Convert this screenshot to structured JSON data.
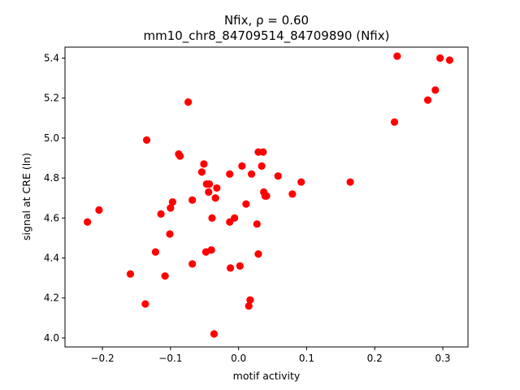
{
  "chart_data": {
    "type": "scatter",
    "title_line1": "Nfix, ρ = 0.60",
    "title_line2": "mm10_chr8_84709514_84709890 (Nfix)",
    "xlabel": "motif activity",
    "ylabel": "signal at CRE (ln)",
    "xlim": [
      -0.255,
      0.337
    ],
    "ylim": [
      3.955,
      5.455
    ],
    "xticks": [
      -0.2,
      -0.1,
      0.0,
      0.1,
      0.2,
      0.3
    ],
    "xtick_labels": [
      "−0.2",
      "−0.1",
      "0.0",
      "0.1",
      "0.2",
      "0.3"
    ],
    "yticks": [
      4.0,
      4.2,
      4.4,
      4.6,
      4.8,
      5.0,
      5.2,
      5.4
    ],
    "ytick_labels": [
      "4.0",
      "4.2",
      "4.4",
      "4.6",
      "4.8",
      "5.0",
      "5.2",
      "5.4"
    ],
    "marker_color": "#ff0000",
    "grid": false,
    "points": [
      {
        "x": -0.222,
        "y": 4.58
      },
      {
        "x": -0.205,
        "y": 4.64
      },
      {
        "x": -0.159,
        "y": 4.32
      },
      {
        "x": -0.137,
        "y": 4.17
      },
      {
        "x": -0.135,
        "y": 4.99
      },
      {
        "x": -0.122,
        "y": 4.43
      },
      {
        "x": -0.114,
        "y": 4.62
      },
      {
        "x": -0.108,
        "y": 4.31
      },
      {
        "x": -0.101,
        "y": 4.52
      },
      {
        "x": -0.1,
        "y": 4.65
      },
      {
        "x": -0.097,
        "y": 4.68
      },
      {
        "x": -0.088,
        "y": 4.92
      },
      {
        "x": -0.086,
        "y": 4.91
      },
      {
        "x": -0.074,
        "y": 5.18
      },
      {
        "x": -0.068,
        "y": 4.69
      },
      {
        "x": -0.068,
        "y": 4.37
      },
      {
        "x": -0.054,
        "y": 4.83
      },
      {
        "x": -0.051,
        "y": 4.87
      },
      {
        "x": -0.048,
        "y": 4.43
      },
      {
        "x": -0.047,
        "y": 4.77
      },
      {
        "x": -0.044,
        "y": 4.73
      },
      {
        "x": -0.043,
        "y": 4.77
      },
      {
        "x": -0.04,
        "y": 4.44
      },
      {
        "x": -0.039,
        "y": 4.6
      },
      {
        "x": -0.036,
        "y": 4.02
      },
      {
        "x": -0.034,
        "y": 4.7
      },
      {
        "x": -0.032,
        "y": 4.75
      },
      {
        "x": -0.013,
        "y": 4.82
      },
      {
        "x": -0.013,
        "y": 4.58
      },
      {
        "x": -0.012,
        "y": 4.35
      },
      {
        "x": -0.006,
        "y": 4.6
      },
      {
        "x": 0.002,
        "y": 4.36
      },
      {
        "x": 0.005,
        "y": 4.86
      },
      {
        "x": 0.011,
        "y": 4.67
      },
      {
        "x": 0.015,
        "y": 4.16
      },
      {
        "x": 0.017,
        "y": 4.19
      },
      {
        "x": 0.019,
        "y": 4.82
      },
      {
        "x": 0.027,
        "y": 4.57
      },
      {
        "x": 0.029,
        "y": 4.42
      },
      {
        "x": 0.029,
        "y": 4.93
      },
      {
        "x": 0.034,
        "y": 4.86
      },
      {
        "x": 0.036,
        "y": 4.93
      },
      {
        "x": 0.037,
        "y": 4.73
      },
      {
        "x": 0.039,
        "y": 4.71
      },
      {
        "x": 0.041,
        "y": 4.71
      },
      {
        "x": 0.058,
        "y": 4.81
      },
      {
        "x": 0.079,
        "y": 4.72
      },
      {
        "x": 0.092,
        "y": 4.78
      },
      {
        "x": 0.164,
        "y": 4.78
      },
      {
        "x": 0.229,
        "y": 5.08
      },
      {
        "x": 0.233,
        "y": 5.41
      },
      {
        "x": 0.278,
        "y": 5.19
      },
      {
        "x": 0.289,
        "y": 5.24
      },
      {
        "x": 0.296,
        "y": 5.4
      },
      {
        "x": 0.31,
        "y": 5.39
      }
    ]
  }
}
